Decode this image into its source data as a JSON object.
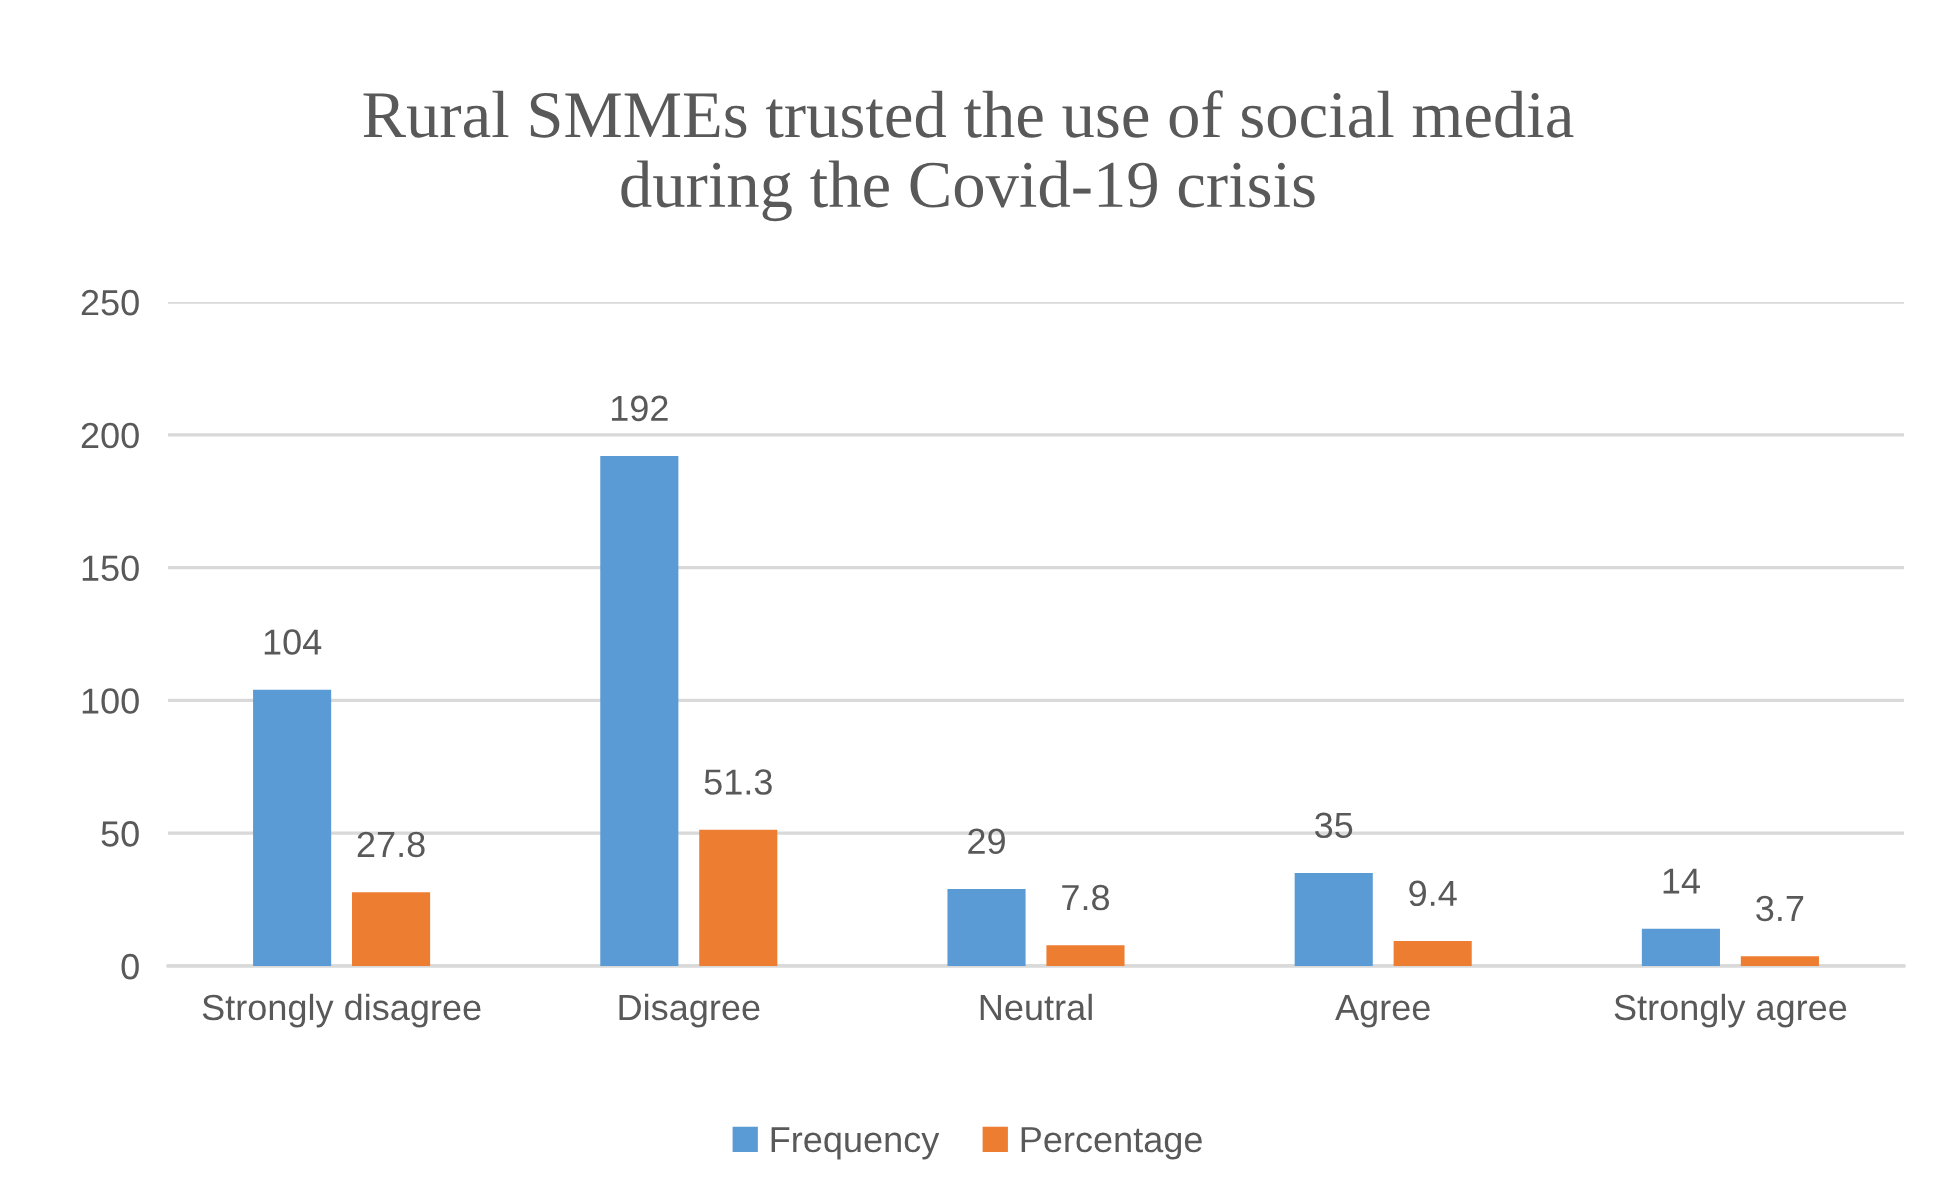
{
  "chart_data": {
    "type": "bar",
    "title": "Rural SMMEs trusted the use of social media\nduring the Covid-19 crisis",
    "categories": [
      "Strongly disagree",
      "Disagree",
      "Neutral",
      "Agree",
      "Strongly agree"
    ],
    "series": [
      {
        "name": "Frequency",
        "color": "#5b9bd5",
        "values": [
          104,
          192,
          29,
          35,
          14
        ]
      },
      {
        "name": "Percentage",
        "color": "#ed7d31",
        "values": [
          27.8,
          51.3,
          7.8,
          9.4,
          3.7
        ]
      }
    ],
    "ylim": [
      0,
      250
    ],
    "yticks": [
      0,
      50,
      100,
      150,
      200,
      250
    ],
    "grid": "y",
    "legend": "bottom",
    "data_labels": true
  }
}
